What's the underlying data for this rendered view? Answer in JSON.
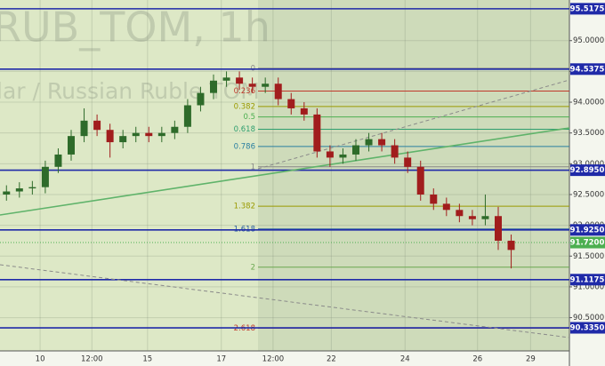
{
  "chart_data": {
    "type": "candlestick",
    "watermark": [
      "RUB_TOM, 1h",
      "lar / Russian Ruble TOM"
    ],
    "up_color": "#2e6b2a",
    "down_color": "#a11d1d",
    "x": [
      0.5,
      1.5,
      2.5,
      3.5,
      4.5,
      5.5,
      6.5,
      7.5,
      8.5,
      9.5,
      10.5,
      11.5,
      12.5,
      13.5,
      14.5,
      15.5,
      16.5,
      17.5,
      18.5,
      19.5,
      20.5,
      21.5,
      22.5,
      23.5,
      24.5,
      25.5,
      26.5,
      27.5,
      28.5,
      29.5,
      30.5,
      31.5,
      32.5,
      33.5,
      34.5,
      35.5,
      36.5,
      37.5,
      38.5,
      39.5
    ],
    "open": [
      92.5,
      92.55,
      92.6,
      92.62,
      92.95,
      93.15,
      93.45,
      93.7,
      93.55,
      93.35,
      93.45,
      93.5,
      93.45,
      93.5,
      93.6,
      93.95,
      94.15,
      94.35,
      94.4,
      94.3,
      94.25,
      94.3,
      94.05,
      93.9,
      93.8,
      93.2,
      93.1,
      93.15,
      93.3,
      93.4,
      93.3,
      93.1,
      92.95,
      92.5,
      92.35,
      92.25,
      92.15,
      92.1,
      92.15,
      91.75
    ],
    "high": [
      92.65,
      92.7,
      92.72,
      93.05,
      93.25,
      93.55,
      93.9,
      93.8,
      93.65,
      93.55,
      93.6,
      93.6,
      93.6,
      93.7,
      94.05,
      94.25,
      94.45,
      94.5,
      94.5,
      94.4,
      94.4,
      94.4,
      94.15,
      94.0,
      93.9,
      93.3,
      93.25,
      93.4,
      93.5,
      93.5,
      93.4,
      93.2,
      93.05,
      92.6,
      92.45,
      92.35,
      92.25,
      92.5,
      92.3,
      91.85
    ],
    "low": [
      92.4,
      92.45,
      92.5,
      92.52,
      92.85,
      93.05,
      93.35,
      93.45,
      93.1,
      93.25,
      93.35,
      93.35,
      93.35,
      93.4,
      93.5,
      93.85,
      94.05,
      94.25,
      94.2,
      94.15,
      94.15,
      93.95,
      93.8,
      93.7,
      93.1,
      92.95,
      93.0,
      93.05,
      93.2,
      93.2,
      93.0,
      92.85,
      92.4,
      92.25,
      92.15,
      92.05,
      92.0,
      92.0,
      91.6,
      91.3
    ],
    "close": [
      92.55,
      92.6,
      92.62,
      92.95,
      93.15,
      93.45,
      93.7,
      93.55,
      93.35,
      93.45,
      93.5,
      93.45,
      93.5,
      93.6,
      93.95,
      94.15,
      94.35,
      94.4,
      94.3,
      94.25,
      94.3,
      94.05,
      93.9,
      93.8,
      93.2,
      93.1,
      93.15,
      93.3,
      93.4,
      93.3,
      93.1,
      92.95,
      92.5,
      92.35,
      92.25,
      92.15,
      92.1,
      92.15,
      91.75,
      91.6
    ],
    "xlim": [
      0,
      44
    ],
    "xticks": [
      {
        "value": 3.1,
        "label": "10"
      },
      {
        "value": 7.1,
        "label": "12:00"
      },
      {
        "value": 11.4,
        "label": "15"
      },
      {
        "value": 17.1,
        "label": "17"
      },
      {
        "value": 21.1,
        "label": "12:00"
      },
      {
        "value": 25.6,
        "label": "22"
      },
      {
        "value": 31.3,
        "label": "24"
      },
      {
        "value": 36.9,
        "label": "26"
      },
      {
        "value": 41.0,
        "label": "29"
      }
    ],
    "ylim": [
      89.96,
      95.66
    ],
    "yticks": [
      {
        "value": 95,
        "label": "95.0000"
      },
      {
        "value": 94.5,
        "label": "94.5000"
      },
      {
        "value": 94,
        "label": "94.0000"
      },
      {
        "value": 93.5,
        "label": "93.5000"
      },
      {
        "value": 93,
        "label": "93.0000"
      },
      {
        "value": 92.5,
        "label": "92.5000"
      },
      {
        "value": 92,
        "label": "92.0000"
      },
      {
        "value": 91.5,
        "label": "91.5000"
      },
      {
        "value": 91,
        "label": "91.0000"
      },
      {
        "value": 90.5,
        "label": "90.5000"
      }
    ],
    "grid": true,
    "price_levels": [
      {
        "value": 95.5175,
        "label": "95.5175",
        "color": "#1f2aa8"
      },
      {
        "value": 94.5375,
        "label": "94.5375",
        "color": "#1f2aa8"
      },
      {
        "value": 92.895,
        "label": "92.8950",
        "color": "#1f2aa8"
      },
      {
        "value": 91.925,
        "label": "91.9250",
        "color": "#1f2aa8"
      },
      {
        "value": 91.1175,
        "label": "91.1175",
        "color": "#1f2aa8"
      },
      {
        "value": 90.335,
        "label": "90.3350",
        "color": "#1f2aa8"
      }
    ],
    "last_price": {
      "value": 91.72,
      "label": "91.7200",
      "color": "#4caf50"
    },
    "fib_levels": [
      {
        "value": 94.55,
        "label": "0",
        "color": "#888888"
      },
      {
        "value": 94.18,
        "label": "0.236",
        "color": "#c0392b"
      },
      {
        "value": 93.93,
        "label": "0.382",
        "color": "#9a9a00"
      },
      {
        "value": 93.76,
        "label": "0.5",
        "color": "#4caf50"
      },
      {
        "value": 93.56,
        "label": "0.618",
        "color": "#2e9e6e"
      },
      {
        "value": 93.28,
        "label": "0.786",
        "color": "#2a7fa0"
      },
      {
        "value": 92.95,
        "label": "1",
        "color": "#888888"
      },
      {
        "value": 92.31,
        "label": "1.382",
        "color": "#9a9a00"
      },
      {
        "value": 91.94,
        "label": "1.618",
        "color": "#2a5fa0"
      },
      {
        "value": 91.32,
        "label": "2",
        "color": "#6aa84f"
      },
      {
        "value": 90.33,
        "label": "2.618",
        "color": "#c0392b"
      }
    ]
  }
}
